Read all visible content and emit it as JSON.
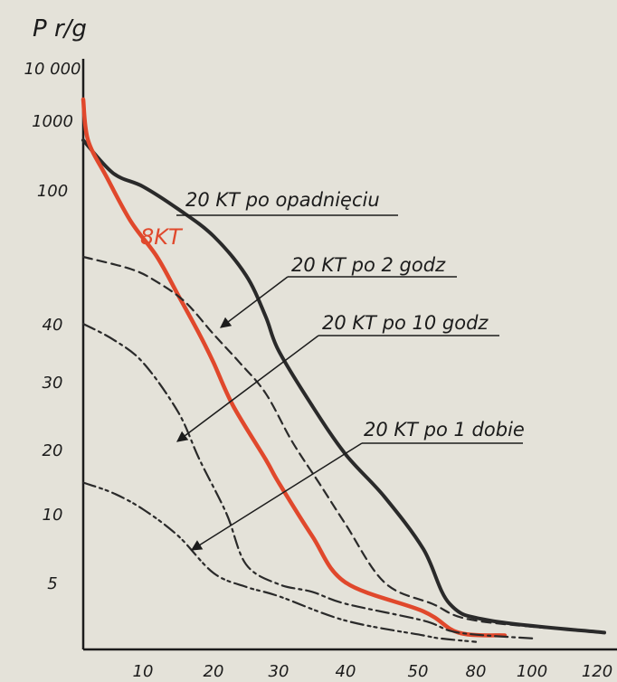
{
  "chart_data": {
    "type": "line",
    "title": "",
    "xlabel": "",
    "ylabel": "P r/g",
    "x_ticks": [
      "10",
      "20",
      "30",
      "40",
      "50",
      "80",
      "100",
      "120"
    ],
    "y_ticks": [
      "10 000",
      "1000",
      "100",
      "40",
      "30",
      "20",
      "10",
      "5"
    ],
    "grid": false,
    "legend": "inline labels with leader lines",
    "series": [
      {
        "name": "20 KT po opadnięciu",
        "color": "#2a2a2a",
        "style": "solid-thick",
        "points": [
          [
            0,
            400
          ],
          [
            5,
            160
          ],
          [
            10,
            110
          ],
          [
            15,
            82
          ],
          [
            20,
            62
          ],
          [
            25,
            47
          ],
          [
            28,
            41
          ],
          [
            30,
            35
          ],
          [
            35,
            26
          ],
          [
            40,
            19
          ],
          [
            45,
            12
          ],
          [
            50,
            7
          ],
          [
            65,
            3
          ],
          [
            85,
            2
          ],
          [
            120,
            1.5
          ]
        ]
      },
      {
        "name": "8KT",
        "color": "#e0482c",
        "style": "solid-thick",
        "points": [
          [
            0,
            2500
          ],
          [
            0.8,
            400
          ],
          [
            4,
            140
          ],
          [
            8,
            72
          ],
          [
            12,
            50
          ],
          [
            15,
            44
          ],
          [
            18,
            38
          ],
          [
            20,
            33
          ],
          [
            23,
            26
          ],
          [
            28,
            18
          ],
          [
            30,
            14
          ],
          [
            35,
            8
          ],
          [
            40,
            5
          ],
          [
            50,
            2.5
          ],
          [
            70,
            1.5
          ],
          [
            90,
            1.4
          ]
        ]
      },
      {
        "name": "20 KT po 2 godz",
        "color": "#2a2a2a",
        "style": "dashed",
        "points": [
          [
            0,
            50
          ],
          [
            8,
            48
          ],
          [
            12,
            46
          ],
          [
            16,
            43
          ],
          [
            20,
            38
          ],
          [
            24,
            33
          ],
          [
            28,
            28
          ],
          [
            32,
            21
          ],
          [
            36,
            14
          ],
          [
            40,
            9
          ],
          [
            45,
            5
          ],
          [
            55,
            3
          ],
          [
            80,
            2
          ],
          [
            120,
            1.5
          ]
        ]
      },
      {
        "name": "20 KT po 10 godz",
        "color": "#2a2a2a",
        "style": "dash-dot",
        "points": [
          [
            0,
            40
          ],
          [
            5,
            37
          ],
          [
            10,
            33
          ],
          [
            15,
            25
          ],
          [
            18,
            18
          ],
          [
            22,
            10
          ],
          [
            25,
            6
          ],
          [
            30,
            4.8
          ],
          [
            35,
            4
          ],
          [
            40,
            3
          ],
          [
            50,
            2
          ],
          [
            70,
            1.5
          ],
          [
            100,
            1.3
          ]
        ]
      },
      {
        "name": "20 KT po 1 dobie",
        "color": "#2a2a2a",
        "style": "dash-dot-dot",
        "points": [
          [
            0,
            14
          ],
          [
            5,
            12.5
          ],
          [
            10,
            10.5
          ],
          [
            15,
            8
          ],
          [
            20,
            5.5
          ],
          [
            25,
            4.5
          ],
          [
            30,
            3.6
          ],
          [
            40,
            2
          ],
          [
            50,
            1.4
          ],
          [
            60,
            1.3
          ],
          [
            80,
            1.2
          ]
        ]
      }
    ]
  },
  "labels": {
    "l0": "20 KT  po opadnięciu",
    "l1": "8KT",
    "l2": "20 KT  po 2 godz",
    "l3": "20 KT  po 10 godz",
    "l4": "20 KT  po 1 dobie"
  }
}
